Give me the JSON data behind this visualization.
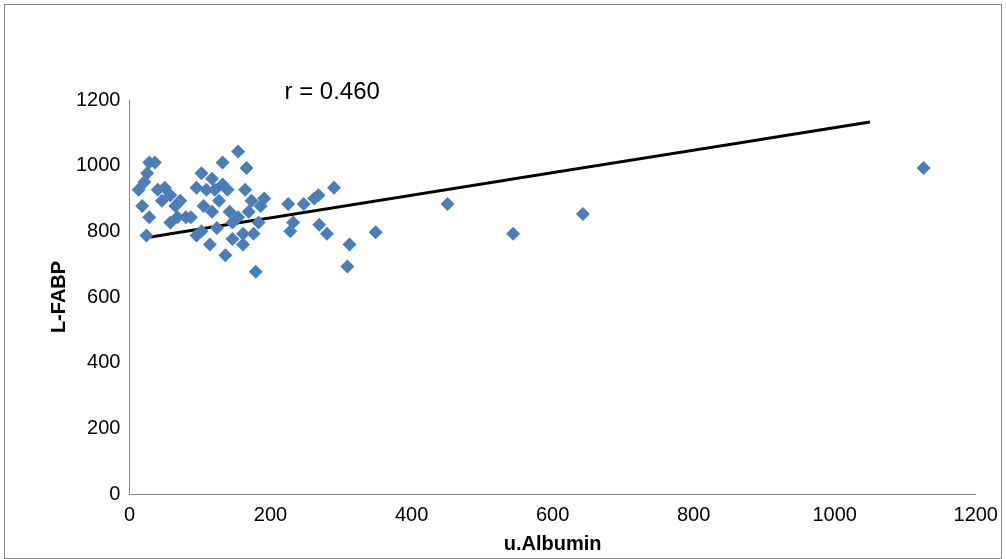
{
  "chart_data": {
    "type": "scatter",
    "xlabel": "u.Albumin",
    "ylabel": "L-FABP",
    "annotations": [
      "r = 0.460"
    ],
    "xlim": [
      0,
      1200
    ],
    "xticks": [
      0,
      200,
      400,
      600,
      800,
      1000,
      1200
    ],
    "ylim": [
      0,
      1200
    ],
    "yticks": [
      0,
      200,
      400,
      600,
      800,
      1000,
      1200
    ],
    "marker": "diamond",
    "series": [
      {
        "color": "#4a7ebb",
        "x": [
          13,
          21,
          18,
          25,
          28,
          36,
          24,
          28,
          40,
          46,
          50,
          58,
          65,
          72,
          58,
          68,
          80,
          87,
          95,
          95,
          102,
          117,
          109,
          121,
          114,
          132,
          132,
          127,
          136,
          139,
          142,
          146,
          146,
          154,
          161,
          164,
          166,
          161,
          169,
          173,
          176,
          183,
          186,
          191,
          179,
          105,
          117,
          124,
          154,
          102,
          225,
          228,
          232,
          247,
          262,
          268,
          290,
          269,
          280,
          312,
          309,
          349,
          451,
          544,
          643,
          1126
        ],
        "values": [
          927,
          950,
          877,
          977,
          1010,
          1010,
          787,
          843,
          927,
          893,
          933,
          910,
          877,
          893,
          827,
          843,
          843,
          843,
          787,
          933,
          977,
          960,
          927,
          927,
          760,
          1010,
          943,
          893,
          727,
          927,
          860,
          827,
          777,
          1043,
          793,
          927,
          993,
          760,
          860,
          893,
          793,
          827,
          877,
          900,
          677,
          877,
          860,
          810,
          843,
          800,
          883,
          800,
          827,
          883,
          900,
          910,
          933,
          820,
          793,
          760,
          693,
          797,
          883,
          793,
          853,
          993
        ]
      },
      {
        "type": "line",
        "color": "#000000",
        "marker": "none",
        "x": [
          30,
          1050
        ],
        "values": [
          783,
          1133
        ]
      }
    ]
  }
}
